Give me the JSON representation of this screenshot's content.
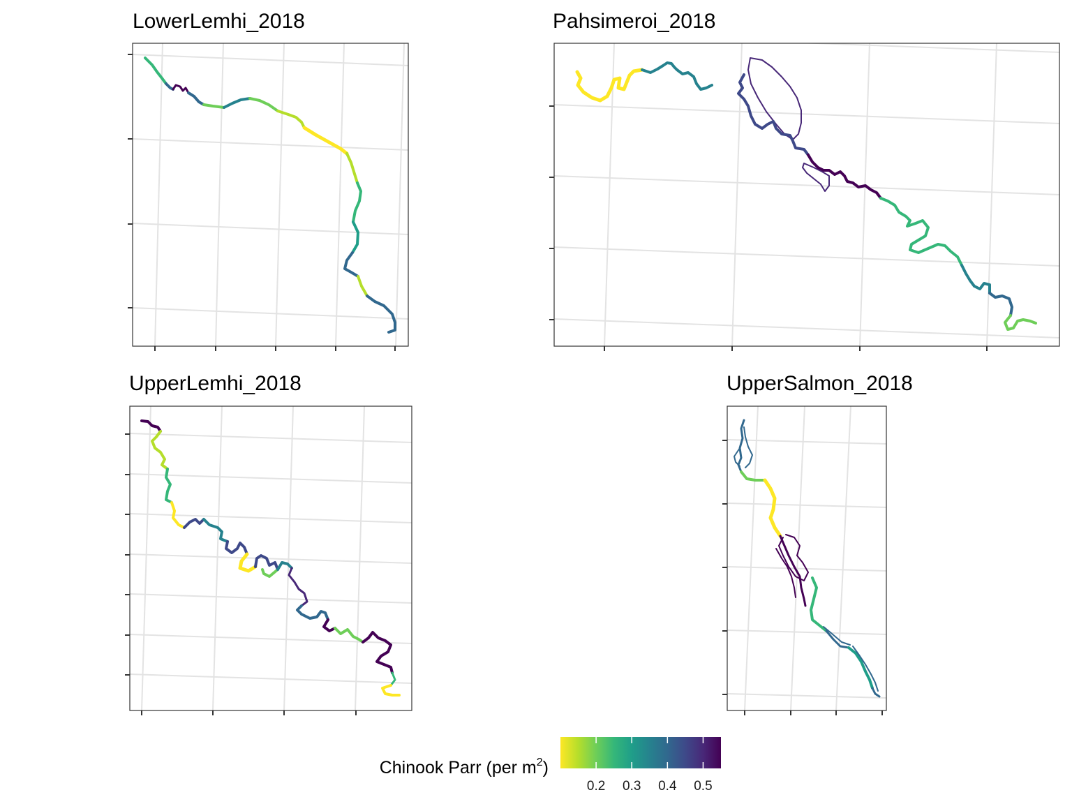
{
  "panels": [
    {
      "id": "lower-lemhi",
      "title": "LowerLemhi_2018"
    },
    {
      "id": "pahsimeroi",
      "title": "Pahsimeroi_2018"
    },
    {
      "id": "upper-lemhi",
      "title": "UpperLemhi_2018"
    },
    {
      "id": "upper-salmon",
      "title": "UpperSalmon_2018"
    }
  ],
  "legend": {
    "title_main": "Chinook Parr (per m",
    "title_sup": "2",
    "title_close": ")",
    "ticks": [
      "0.2",
      "0.3",
      "0.4",
      "0.5"
    ],
    "tick_values": [
      0.2,
      0.3,
      0.4,
      0.5
    ],
    "range": [
      0.1,
      0.55
    ],
    "palette": "viridis-reversed",
    "colors": [
      "#fde725",
      "#b5de2b",
      "#6ece58",
      "#35b779",
      "#1f9e89",
      "#26828e",
      "#31688e",
      "#3e4989",
      "#482878",
      "#440154"
    ]
  },
  "colors": {
    "frame": "#333333",
    "graticule": "#e3e3e3",
    "background": "#ffffff"
  }
}
